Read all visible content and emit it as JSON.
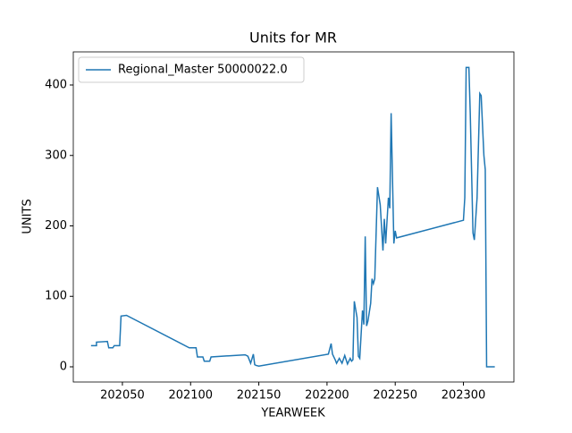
{
  "chart_data": {
    "type": "line",
    "title": "Units for MR",
    "xlabel": "YEARWEEK",
    "ylabel": "UNITS",
    "legend": "upper left",
    "x": [
      202027,
      202031,
      202031,
      202039,
      202040,
      202043,
      202044,
      202048,
      202049,
      202053,
      202099,
      202104,
      202105,
      202109,
      202110,
      202114,
      202115,
      202140,
      202142,
      202144,
      202146,
      202147,
      202148,
      202150,
      202201,
      202203,
      202204,
      202206,
      202207,
      202209,
      202211,
      202213,
      202215,
      202217,
      202218,
      202219,
      202220,
      202222,
      202223,
      202224,
      202226,
      202227,
      202228,
      202229,
      202230,
      202232,
      202233,
      202234,
      202235,
      202237,
      202239,
      202241,
      202242,
      202243,
      202245,
      202246,
      202247,
      202249,
      202250,
      202251,
      202300,
      202301,
      202302,
      202304,
      202305,
      202307,
      202308,
      202310,
      202312,
      202313,
      202315,
      202316,
      202317,
      202323
    ],
    "series": [
      {
        "name": "Regional_Master 50000022.0",
        "color": "#1f77b4",
        "values": [
          30,
          30,
          35,
          36,
          27,
          27,
          30,
          30,
          72,
          73,
          27,
          27,
          14,
          14,
          8,
          8,
          14,
          17,
          15,
          5,
          18,
          3,
          2,
          1,
          18,
          33,
          18,
          10,
          5,
          12,
          5,
          16,
          4,
          12,
          8,
          10,
          93,
          70,
          15,
          12,
          80,
          60,
          185,
          58,
          65,
          90,
          125,
          118,
          125,
          255,
          230,
          165,
          210,
          175,
          240,
          225,
          360,
          175,
          193,
          183,
          208,
          240,
          425,
          425,
          360,
          190,
          180,
          240,
          388,
          385,
          300,
          280,
          0,
          0
        ]
      }
    ],
    "xlim": [
      202014,
      202337
    ],
    "xticks": [
      202050,
      202100,
      202150,
      202200,
      202250,
      202300
    ],
    "ylim": [
      -21.6,
      447
    ],
    "yticks": [
      0,
      100,
      200,
      300,
      400
    ]
  }
}
